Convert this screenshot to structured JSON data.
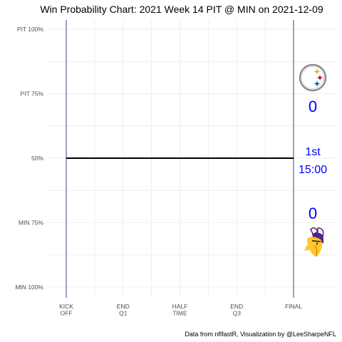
{
  "chart_data": {
    "type": "line",
    "title": "Win Probability Chart: 2021 Week 14 PIT @ MIN on 2021-12-09",
    "caption": "Data from nflfastR, Visualization by @LeeSharpeNFL",
    "x": {
      "range": [
        0,
        3600
      ],
      "direction": "reversed",
      "ticks": [
        {
          "value": 3600,
          "lines": [
            "KICK",
            "OFF"
          ]
        },
        {
          "value": 2700,
          "lines": [
            "END",
            "Q1"
          ]
        },
        {
          "value": 1800,
          "lines": [
            "HALF",
            "TIME"
          ]
        },
        {
          "value": 900,
          "lines": [
            "END",
            "Q3"
          ]
        },
        {
          "value": 0,
          "lines": [
            "FINAL"
          ]
        }
      ],
      "boundary_lines": [
        3600,
        0
      ],
      "boundary_line_color": "#3b3b8f"
    },
    "y": {
      "range": [
        0,
        1
      ],
      "ticks": [
        {
          "value": 1.0,
          "label": "PIT 100%"
        },
        {
          "value": 0.75,
          "label": "PIT 75%"
        },
        {
          "value": 0.5,
          "label": "50%"
        },
        {
          "value": 0.25,
          "label": "MIN 75%"
        },
        {
          "value": 0.0,
          "label": "MIN 100%"
        }
      ]
    },
    "grid": true,
    "series": [
      {
        "points": [
          [
            3600,
            0.5
          ],
          [
            0,
            0.5
          ]
        ],
        "color": "#000000"
      }
    ],
    "annotations": {
      "home_logo": "steelers-logo",
      "away_logo": "vikings-logo",
      "top_score": "0",
      "bottom_score": "0",
      "period": "1st",
      "clock": "15:00",
      "text_color": "#0000ff"
    }
  }
}
